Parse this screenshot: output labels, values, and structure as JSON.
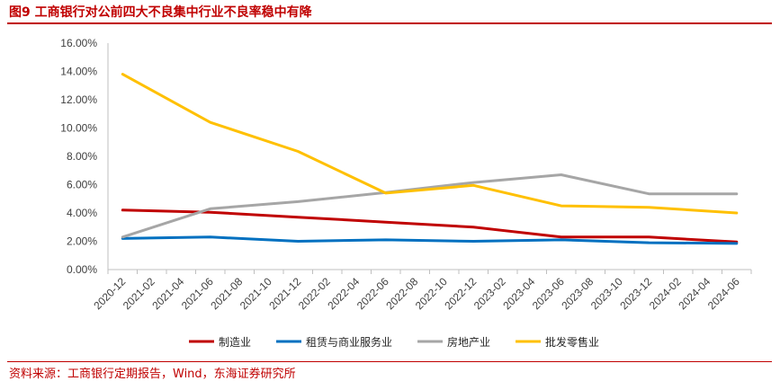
{
  "figure": {
    "title": "图9  工商银行对公前四大不良集中行业不良率稳中有降",
    "source": "资料来源：工商银行定期报告，Wind，东海证券研究所"
  },
  "chart_data": {
    "type": "line",
    "title": "",
    "xlabel": "",
    "ylabel": "",
    "categories": [
      "2020-12",
      "2021-02",
      "2021-04",
      "2021-06",
      "2021-08",
      "2021-10",
      "2021-12",
      "2022-02",
      "2022-04",
      "2022-06",
      "2022-08",
      "2022-10",
      "2022-12",
      "2023-02",
      "2023-04",
      "2023-06",
      "2023-08",
      "2023-10",
      "2023-12",
      "2024-02",
      "2024-04",
      "2024-06"
    ],
    "ylim": [
      0,
      16
    ],
    "y_ticks": [
      "0.00%",
      "2.00%",
      "4.00%",
      "6.00%",
      "8.00%",
      "10.00%",
      "12.00%",
      "14.00%",
      "16.00%"
    ],
    "y_tick_values": [
      0,
      2,
      4,
      6,
      8,
      10,
      12,
      14,
      16
    ],
    "grid": false,
    "legend_position": "bottom",
    "series": [
      {
        "name": "制造业",
        "color": "#c00000",
        "points": [
          [
            "2020-12",
            4.2
          ],
          [
            "2021-06",
            4.05
          ],
          [
            "2021-12",
            3.7
          ],
          [
            "2022-06",
            3.35
          ],
          [
            "2022-12",
            3.0
          ],
          [
            "2023-06",
            2.3
          ],
          [
            "2023-12",
            2.3
          ],
          [
            "2024-06",
            1.95
          ]
        ]
      },
      {
        "name": "租赁与商业服务业",
        "color": "#0070c0",
        "points": [
          [
            "2020-12",
            2.2
          ],
          [
            "2021-06",
            2.3
          ],
          [
            "2021-12",
            2.0
          ],
          [
            "2022-06",
            2.1
          ],
          [
            "2022-12",
            2.0
          ],
          [
            "2023-06",
            2.1
          ],
          [
            "2023-12",
            1.9
          ],
          [
            "2024-06",
            1.85
          ]
        ]
      },
      {
        "name": "房地产业",
        "color": "#a6a6a6",
        "points": [
          [
            "2020-12",
            2.3
          ],
          [
            "2021-06",
            4.3
          ],
          [
            "2021-12",
            4.8
          ],
          [
            "2022-06",
            5.45
          ],
          [
            "2022-12",
            6.15
          ],
          [
            "2023-06",
            6.7
          ],
          [
            "2023-12",
            5.35
          ],
          [
            "2024-06",
            5.35
          ]
        ]
      },
      {
        "name": "批发零售业",
        "color": "#ffc000",
        "points": [
          [
            "2020-12",
            13.8
          ],
          [
            "2021-06",
            10.4
          ],
          [
            "2021-12",
            8.35
          ],
          [
            "2022-06",
            5.4
          ],
          [
            "2022-12",
            5.95
          ],
          [
            "2023-06",
            4.5
          ],
          [
            "2023-12",
            4.4
          ],
          [
            "2024-06",
            4.0
          ]
        ]
      }
    ]
  }
}
